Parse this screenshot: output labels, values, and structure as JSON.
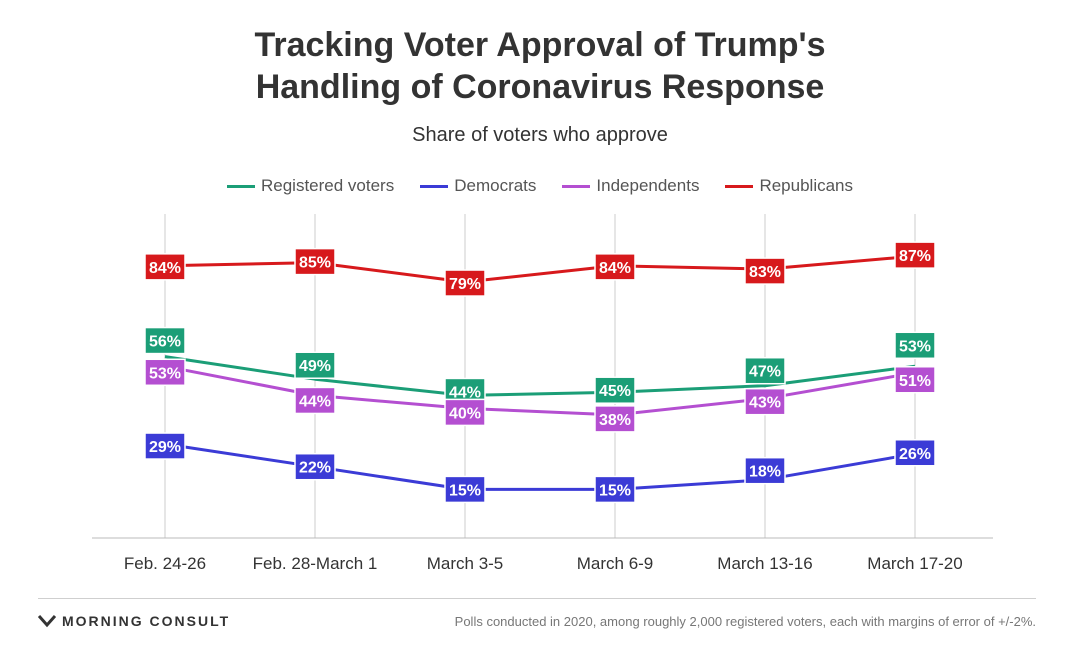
{
  "colors": {
    "registered": "#1b9e77",
    "democrats": "#3b3bd6",
    "independents": "#b44fd1",
    "republicans": "#d7191c",
    "axis": "#cccccc",
    "text": "#333333"
  },
  "header": {
    "title_line1": "Tracking Voter Approval of Trump's",
    "title_line2": "Handling of Coronavirus Response",
    "subtitle": "Share of voters who approve"
  },
  "chart_data": {
    "type": "line",
    "title": "Tracking Voter Approval of Trump's Handling of Coronavirus Response",
    "subtitle": "Share of voters who approve",
    "xlabel": "",
    "ylabel": "",
    "ylim": [
      0,
      100
    ],
    "legend_position": "top-center",
    "categories": [
      "Feb. 24-26",
      "Feb. 28-March 1",
      "March 3-5",
      "March 6-9",
      "March 13-16",
      "March 17-20"
    ],
    "series": [
      {
        "key": "registered",
        "name": "Registered voters",
        "values": [
          56,
          49,
          44,
          45,
          47,
          53
        ]
      },
      {
        "key": "democrats",
        "name": "Democrats",
        "values": [
          29,
          22,
          15,
          15,
          18,
          26
        ]
      },
      {
        "key": "independents",
        "name": "Independents",
        "values": [
          53,
          44,
          40,
          38,
          43,
          51
        ]
      },
      {
        "key": "republicans",
        "name": "Republicans",
        "values": [
          84,
          85,
          79,
          84,
          83,
          87
        ]
      }
    ],
    "value_suffix": "%"
  },
  "footer": {
    "brand": "MORNING CONSULT",
    "note": "Polls conducted in 2020, among roughly 2,000 registered voters, each with margins of error of +/-2%."
  }
}
